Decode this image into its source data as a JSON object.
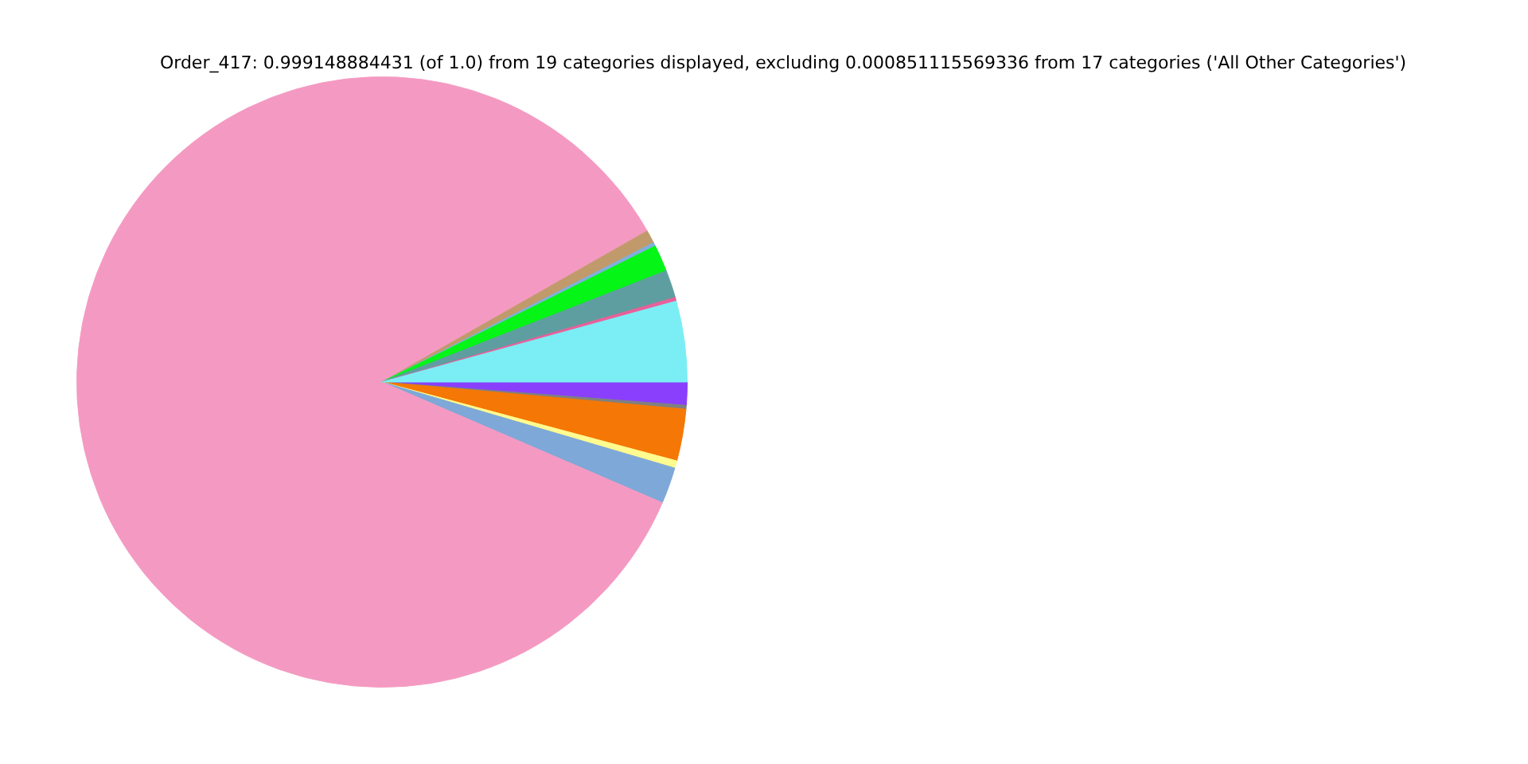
{
  "chart_data": {
    "type": "pie",
    "title": "Order_417: 0.999148884431 (of 1.0) from 19 categories displayed, excluding 0.000851115569336 from 17 categories ('All Other Categories')",
    "categories": [
      null,
      null,
      null,
      null,
      null,
      null,
      null,
      null,
      null,
      null,
      null,
      null
    ],
    "values": [
      1.22,
      0.2,
      2.74,
      0.39,
      1.92,
      85.29,
      0.69,
      0.2,
      1.41,
      1.47,
      0.2,
      4.27
    ],
    "colors": [
      "#8a3ffc",
      "#808080",
      "#f57705",
      "#fffb8f",
      "#7ea8d8",
      "#f49ac2",
      "#c19a6b",
      "#7eb0d9",
      "#05f516",
      "#5f9ea0",
      "#e8609a",
      "#7aeef4"
    ],
    "legend": false
  }
}
